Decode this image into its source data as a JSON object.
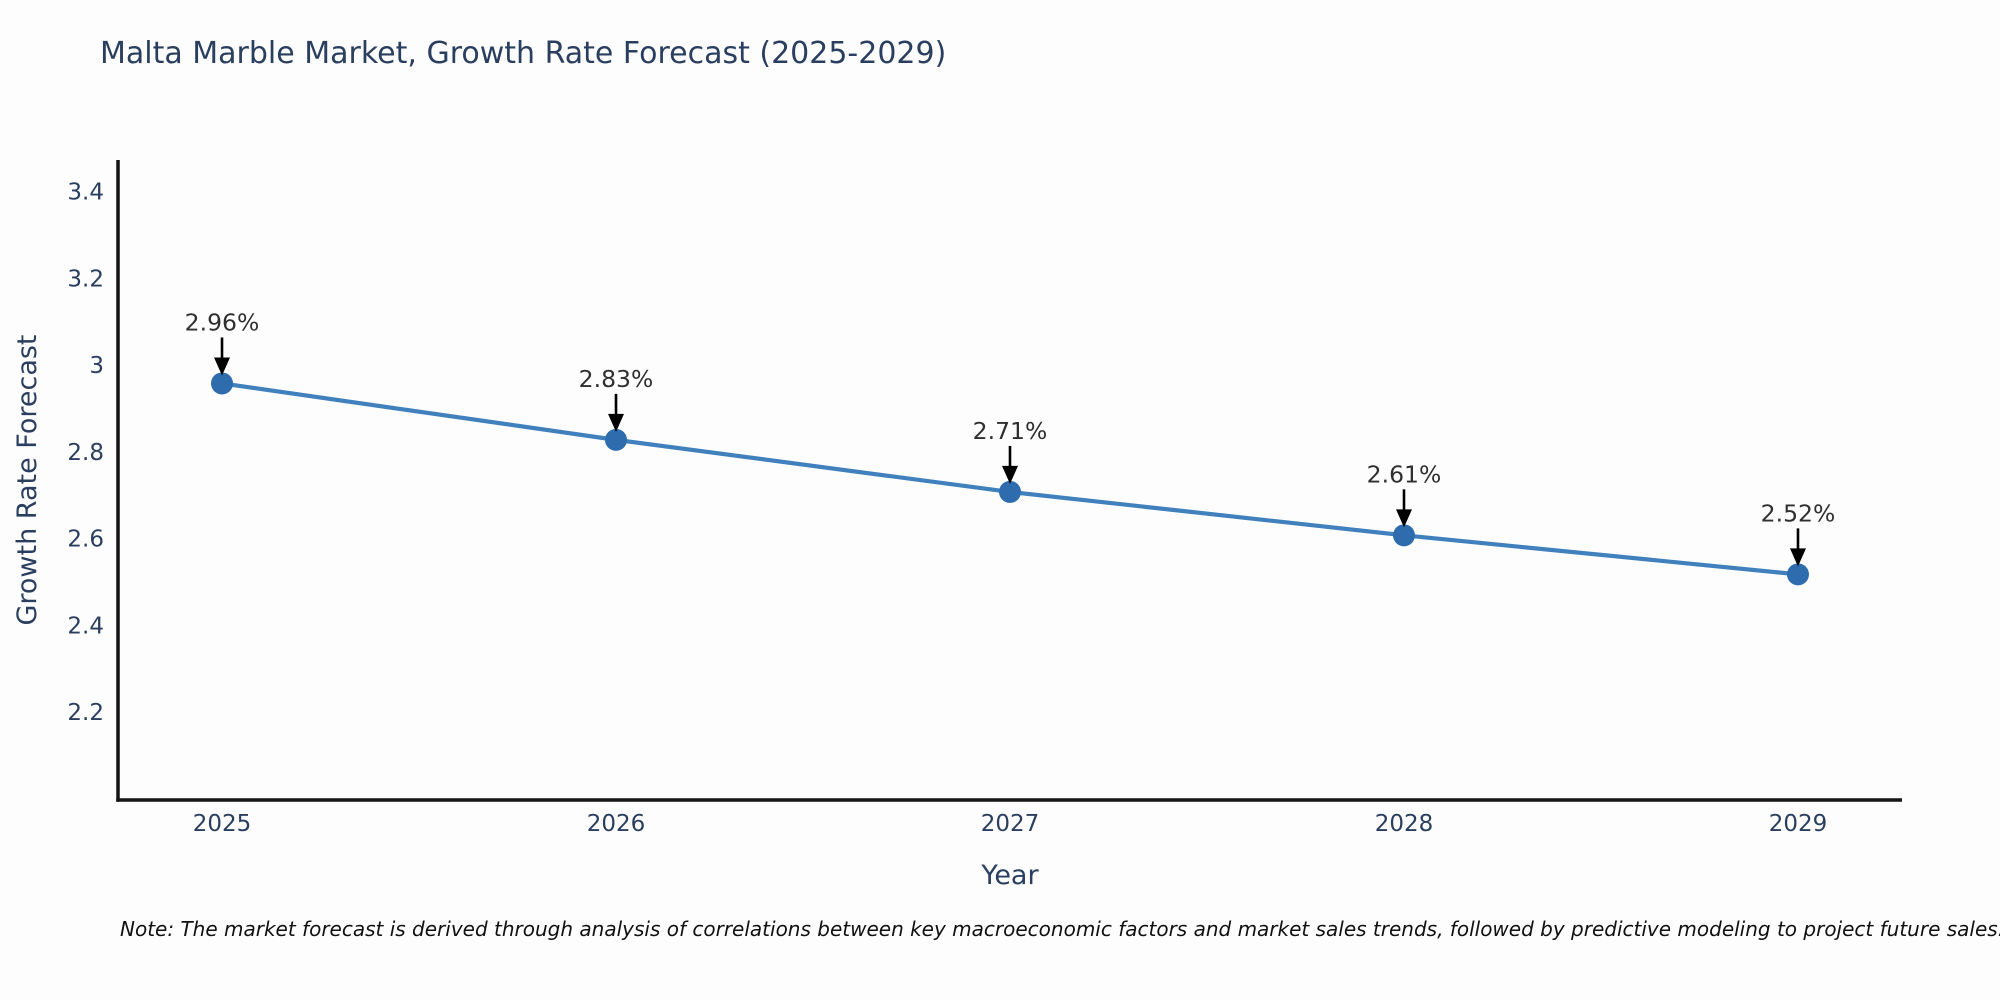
{
  "note": "Note: The market forecast is derived through analysis of correlations between key macroeconomic factors and market sales trends, followed by predictive modeling to project future sales.",
  "chart_data": {
    "type": "line",
    "title": "Malta Marble Market, Growth Rate Forecast (2025-2029)",
    "xlabel": "Year",
    "ylabel": "Growth Rate Forecast",
    "x": [
      2025,
      2026,
      2027,
      2028,
      2029
    ],
    "x_tick_labels": [
      "2025",
      "2026",
      "2027",
      "2028",
      "2029"
    ],
    "series": [
      {
        "name": "Growth Rate Forecast",
        "values": [
          2.96,
          2.83,
          2.71,
          2.61,
          2.52
        ],
        "point_labels": [
          "2.96%",
          "2.83%",
          "2.71%",
          "2.61%",
          "2.52%"
        ]
      }
    ],
    "yticks": [
      2.2,
      2.4,
      2.6,
      2.8,
      3,
      3.2,
      3.4
    ],
    "ytick_labels": [
      "2.2",
      "2.4",
      "2.6",
      "2.8",
      "3",
      "3.2",
      "3.4"
    ],
    "ylim": [
      2.0,
      3.475
    ],
    "xlim": [
      2024.736,
      2029.264
    ],
    "grid": false,
    "legend": "none",
    "colors": {
      "line": "#4080bd",
      "marker": "#2e6cad",
      "axis": "#151515",
      "tick_text": "#2a3f5f",
      "annotation_text": "#2f2f2f",
      "arrow": "#000000"
    }
  }
}
